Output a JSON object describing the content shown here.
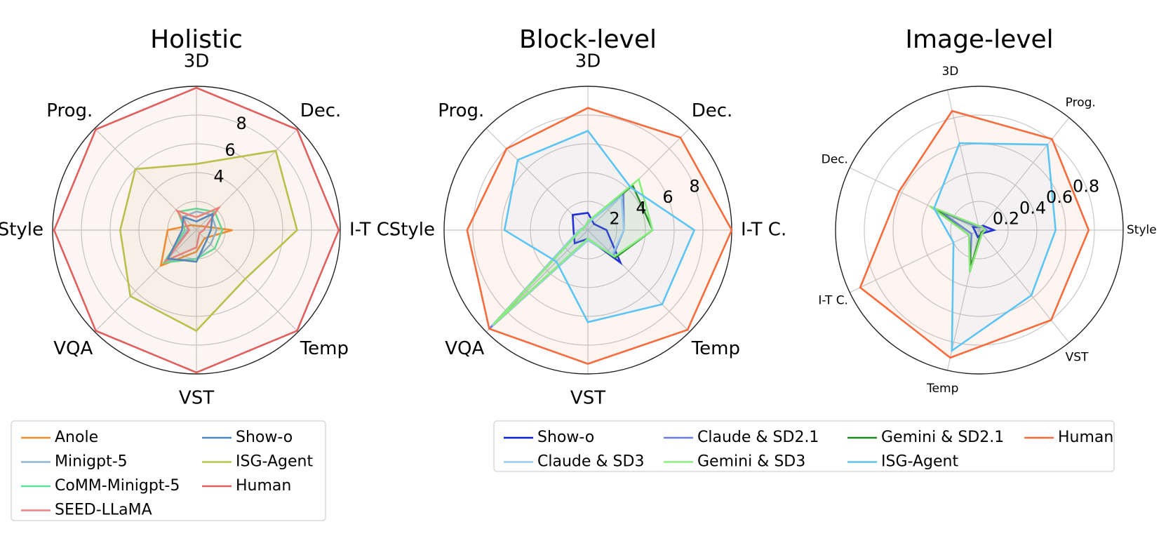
{
  "chart_data": [
    {
      "type": "radar",
      "title": "Holistic",
      "categories": [
        "3D",
        "Prog.",
        "Style",
        "VQA",
        "VST",
        "Temp",
        "I-T C.",
        "Dec."
      ],
      "rticks": [
        "4",
        "6",
        "8"
      ],
      "rlim": [
        0,
        10
      ],
      "series": [
        {
          "name": "Anole",
          "color": "#f58a2c",
          "values": [
            0.3,
            0.5,
            2.0,
            3.5,
            1.5,
            0.8,
            2.5,
            0.4
          ]
        },
        {
          "name": "Minigpt-5",
          "color": "#8fb4d9",
          "values": [
            1.3,
            1.3,
            0.6,
            3.0,
            2.0,
            1.4,
            1.4,
            1.5
          ]
        },
        {
          "name": "CoMM-Minigpt-5",
          "color": "#5ee0a0",
          "values": [
            1.5,
            1.8,
            0.8,
            3.2,
            2.0,
            1.8,
            1.8,
            1.8
          ]
        },
        {
          "name": "SEED-LLaMA",
          "color": "#f08080",
          "values": [
            0.9,
            1.9,
            0.5,
            3.0,
            1.2,
            0.3,
            0.5,
            2.2
          ]
        },
        {
          "name": "Show-o",
          "color": "#4a86c8",
          "values": [
            0.6,
            1.3,
            1.0,
            2.8,
            2.2,
            1.0,
            1.0,
            1.6
          ]
        },
        {
          "name": "ISG-Agent",
          "color": "#b8c64a",
          "values": [
            4.6,
            6.0,
            5.3,
            6.5,
            7.0,
            4.8,
            7.0,
            7.8
          ]
        },
        {
          "name": "Human",
          "color": "#e06060",
          "values": [
            9.9,
            9.9,
            9.9,
            9.9,
            9.9,
            9.9,
            9.9,
            9.9
          ]
        }
      ],
      "legend": [
        "Anole",
        "Show-o",
        "Minigpt-5",
        "ISG-Agent",
        "CoMM-Minigpt-5",
        "Human",
        "SEED-LLaMA"
      ]
    },
    {
      "type": "radar",
      "title": "Block-level",
      "categories": [
        "3D",
        "Prog.",
        "Style",
        "VQA",
        "VST",
        "Temp",
        "I-T C.",
        "Dec."
      ],
      "rticks": [
        "2",
        "4",
        "6",
        "8"
      ],
      "rlim": [
        0,
        10
      ],
      "series": [
        {
          "name": "Show-o",
          "color": "#1020e0",
          "values": [
            1.2,
            1.5,
            1.0,
            1.3,
            0.6,
            3.2,
            1.3,
            0.6
          ]
        },
        {
          "name": "Claude & SD2.1",
          "color": "#6c7ce8",
          "values": [
            0.5,
            0.3,
            0.6,
            9.7,
            0.7,
            2.5,
            2.5,
            3.5
          ]
        },
        {
          "name": "Gemini & SD2.1",
          "color": "#1a8a1a",
          "values": [
            0.6,
            0.3,
            0.5,
            9.3,
            0.6,
            2.7,
            4.5,
            4.4
          ]
        },
        {
          "name": "Human",
          "color": "#f76b3c",
          "values": [
            8.5,
            8.0,
            8.4,
            9.7,
            9.3,
            9.8,
            10.0,
            9.1
          ]
        },
        {
          "name": "Claude & SD3",
          "color": "#9ccaf0",
          "values": [
            0.5,
            0.3,
            0.6,
            9.4,
            0.7,
            2.4,
            2.5,
            3.3
          ]
        },
        {
          "name": "Gemini & SD3",
          "color": "#88f07a",
          "values": [
            0.6,
            0.3,
            0.5,
            9.3,
            0.6,
            2.6,
            4.5,
            5.0
          ]
        },
        {
          "name": "ISG-Agent",
          "color": "#5ec4f2",
          "values": [
            6.9,
            6.9,
            5.8,
            3.1,
            6.4,
            7.3,
            7.4,
            4.2
          ]
        }
      ],
      "legend": [
        "Show-o",
        "Claude & SD2.1",
        "Gemini & SD2.1",
        "Human",
        "Claude & SD3",
        "Gemini & SD3",
        "ISG-Agent"
      ]
    },
    {
      "type": "radar",
      "title": "Image-level",
      "categories": [
        "Style",
        "Prog.",
        "3D",
        "Dec.",
        "I-T C.",
        "Temp",
        "VST"
      ],
      "rticks": [
        "0.2",
        "0.4",
        "0.6",
        "0.8"
      ],
      "rlim": [
        0,
        1
      ],
      "series": [
        {
          "name": "Show-o",
          "color": "#1020e0",
          "values": [
            0.1,
            0.04,
            0.02,
            0.05,
            0.03,
            0.05,
            0.03
          ]
        },
        {
          "name": "Claude & SD2.1",
          "color": "#6c7ce8",
          "values": [
            0.05,
            0.03,
            0.02,
            0.3,
            0.06,
            0.3,
            0.02
          ]
        },
        {
          "name": "Gemini & SD2.1",
          "color": "#1a8a1a",
          "values": [
            0.04,
            0.03,
            0.03,
            0.34,
            0.08,
            0.26,
            0.02
          ]
        },
        {
          "name": "Gemini & SD3",
          "color": "#88f07a",
          "values": [
            0.04,
            0.03,
            0.03,
            0.38,
            0.08,
            0.3,
            0.03
          ]
        },
        {
          "name": "Human",
          "color": "#f76b3c",
          "values": [
            0.76,
            0.81,
            0.85,
            0.62,
            0.92,
            0.91,
            0.8
          ]
        },
        {
          "name": "ISG-Agent",
          "color": "#5ec4f2",
          "values": [
            0.53,
            0.76,
            0.62,
            0.35,
            0.2,
            0.86,
            0.58
          ]
        }
      ],
      "legend": []
    }
  ]
}
